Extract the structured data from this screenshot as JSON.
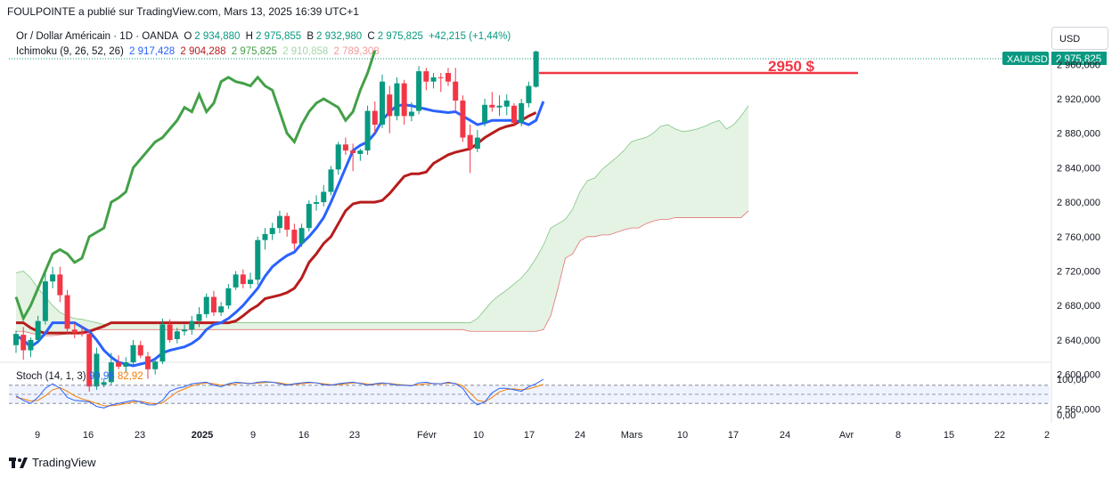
{
  "header": {
    "publisher_line": "FOULPOINTE a publié sur TradingView.com, Mars 13, 2025 16:39 UTC+1"
  },
  "legend": {
    "symbol": "Or / Dollar Américain · 1D · OANDA",
    "o_label": "O",
    "o_value": "2 934,880",
    "h_label": "H",
    "h_value": "2 975,855",
    "b_label": "B",
    "b_value": "2 932,980",
    "c_label": "C",
    "c_value": "2 975,825",
    "change": "+42,215 (+1,44%)",
    "ichimoku_label": "Ichimoku (9, 26, 52, 26)",
    "ichimoku_values": [
      "2 917,428",
      "2 904,288",
      "2 975,825",
      "2 910,858",
      "2 789,308"
    ],
    "stoch_label": "Stoch (14, 1, 3)",
    "stoch_values": [
      "99,98",
      "82,92"
    ]
  },
  "currency_button": "USD",
  "symbol_badge": "XAUUSD",
  "price_badge": "2 975,825",
  "annotation": "2950 $",
  "brand": "TradingView",
  "colors": {
    "up": "#089981",
    "down": "#f23645",
    "tenkan": "#2962ff",
    "kijun": "#b71c1c",
    "chikou": "#43a047",
    "cloud_bull": "#c8e6c9",
    "cloud_bear": "#ffcdd2",
    "stoch_k": "#2962ff",
    "stoch_d": "#f57c00"
  },
  "chart_data": {
    "type": "candlestick",
    "y_ticks": [
      "2 960,000",
      "2 920,000",
      "2 880,000",
      "2 840,000",
      "2 800,000",
      "2 760,000",
      "2 720,000",
      "2 680,000",
      "2 640,000",
      "2 600,000",
      "2 560,000"
    ],
    "ylim": [
      2535,
      2990
    ],
    "x_ticks": [
      "9",
      "16",
      "23",
      "2025",
      "9",
      "16",
      "23",
      "Févr",
      "10",
      "17",
      "24",
      "Mars",
      "10",
      "17",
      "24",
      "Avr",
      "8",
      "15",
      "22",
      "2"
    ],
    "candles": [
      {
        "o": 2634,
        "h": 2651,
        "l": 2625,
        "c": 2647
      },
      {
        "o": 2646,
        "h": 2655,
        "l": 2617,
        "c": 2628
      },
      {
        "o": 2628,
        "h": 2643,
        "l": 2620,
        "c": 2640
      },
      {
        "o": 2640,
        "h": 2668,
        "l": 2636,
        "c": 2662
      },
      {
        "o": 2662,
        "h": 2718,
        "l": 2658,
        "c": 2708
      },
      {
        "o": 2708,
        "h": 2725,
        "l": 2700,
        "c": 2716
      },
      {
        "o": 2716,
        "h": 2725,
        "l": 2684,
        "c": 2692
      },
      {
        "o": 2692,
        "h": 2698,
        "l": 2648,
        "c": 2653
      },
      {
        "o": 2652,
        "h": 2660,
        "l": 2642,
        "c": 2648
      },
      {
        "o": 2648,
        "h": 2656,
        "l": 2644,
        "c": 2647
      },
      {
        "o": 2647,
        "h": 2652,
        "l": 2580,
        "c": 2586
      },
      {
        "o": 2586,
        "h": 2631,
        "l": 2582,
        "c": 2624
      },
      {
        "o": 2588,
        "h": 2595,
        "l": 2585,
        "c": 2591
      },
      {
        "o": 2591,
        "h": 2625,
        "l": 2588,
        "c": 2614
      },
      {
        "o": 2614,
        "h": 2622,
        "l": 2606,
        "c": 2609
      },
      {
        "o": 2609,
        "h": 2620,
        "l": 2602,
        "c": 2614
      },
      {
        "o": 2614,
        "h": 2640,
        "l": 2610,
        "c": 2634
      },
      {
        "o": 2634,
        "h": 2639,
        "l": 2619,
        "c": 2622
      },
      {
        "o": 2621,
        "h": 2626,
        "l": 2595,
        "c": 2606
      },
      {
        "o": 2606,
        "h": 2618,
        "l": 2600,
        "c": 2615
      },
      {
        "o": 2615,
        "h": 2665,
        "l": 2612,
        "c": 2658
      },
      {
        "o": 2658,
        "h": 2664,
        "l": 2637,
        "c": 2640
      },
      {
        "o": 2641,
        "h": 2654,
        "l": 2636,
        "c": 2650
      },
      {
        "o": 2650,
        "h": 2658,
        "l": 2645,
        "c": 2652
      },
      {
        "o": 2652,
        "h": 2668,
        "l": 2646,
        "c": 2662
      },
      {
        "o": 2662,
        "h": 2678,
        "l": 2655,
        "c": 2670
      },
      {
        "o": 2670,
        "h": 2694,
        "l": 2666,
        "c": 2690
      },
      {
        "o": 2690,
        "h": 2697,
        "l": 2668,
        "c": 2672
      },
      {
        "o": 2672,
        "h": 2684,
        "l": 2668,
        "c": 2679
      },
      {
        "o": 2680,
        "h": 2705,
        "l": 2676,
        "c": 2700
      },
      {
        "o": 2701,
        "h": 2720,
        "l": 2698,
        "c": 2716
      },
      {
        "o": 2716,
        "h": 2722,
        "l": 2700,
        "c": 2705
      },
      {
        "o": 2705,
        "h": 2718,
        "l": 2700,
        "c": 2710
      },
      {
        "o": 2710,
        "h": 2760,
        "l": 2704,
        "c": 2756
      },
      {
        "o": 2756,
        "h": 2770,
        "l": 2745,
        "c": 2763
      },
      {
        "o": 2763,
        "h": 2776,
        "l": 2756,
        "c": 2770
      },
      {
        "o": 2770,
        "h": 2790,
        "l": 2764,
        "c": 2784
      },
      {
        "o": 2784,
        "h": 2788,
        "l": 2760,
        "c": 2768
      },
      {
        "o": 2768,
        "h": 2775,
        "l": 2745,
        "c": 2752
      },
      {
        "o": 2752,
        "h": 2775,
        "l": 2748,
        "c": 2770
      },
      {
        "o": 2770,
        "h": 2802,
        "l": 2766,
        "c": 2798
      },
      {
        "o": 2798,
        "h": 2808,
        "l": 2790,
        "c": 2800
      },
      {
        "o": 2800,
        "h": 2820,
        "l": 2795,
        "c": 2812
      },
      {
        "o": 2812,
        "h": 2842,
        "l": 2808,
        "c": 2838
      },
      {
        "o": 2838,
        "h": 2870,
        "l": 2832,
        "c": 2867
      },
      {
        "o": 2867,
        "h": 2875,
        "l": 2855,
        "c": 2860
      },
      {
        "o": 2860,
        "h": 2868,
        "l": 2836,
        "c": 2857
      },
      {
        "o": 2856,
        "h": 2862,
        "l": 2848,
        "c": 2860
      },
      {
        "o": 2860,
        "h": 2912,
        "l": 2855,
        "c": 2906
      },
      {
        "o": 2906,
        "h": 2917,
        "l": 2880,
        "c": 2890
      },
      {
        "o": 2890,
        "h": 2948,
        "l": 2886,
        "c": 2940
      },
      {
        "o": 2925,
        "h": 2935,
        "l": 2880,
        "c": 2900
      },
      {
        "o": 2900,
        "h": 2945,
        "l": 2895,
        "c": 2938
      },
      {
        "o": 2938,
        "h": 2942,
        "l": 2890,
        "c": 2900
      },
      {
        "o": 2900,
        "h": 2916,
        "l": 2894,
        "c": 2905
      },
      {
        "o": 2906,
        "h": 2958,
        "l": 2902,
        "c": 2952
      },
      {
        "o": 2952,
        "h": 2956,
        "l": 2930,
        "c": 2940
      },
      {
        "o": 2940,
        "h": 2950,
        "l": 2932,
        "c": 2945
      },
      {
        "o": 2945,
        "h": 2950,
        "l": 2928,
        "c": 2944
      },
      {
        "o": 2950,
        "h": 2956,
        "l": 2935,
        "c": 2940
      },
      {
        "o": 2940,
        "h": 2956,
        "l": 2905,
        "c": 2918
      },
      {
        "o": 2918,
        "h": 2924,
        "l": 2870,
        "c": 2875
      },
      {
        "o": 2878,
        "h": 2890,
        "l": 2834,
        "c": 2862
      },
      {
        "o": 2862,
        "h": 2884,
        "l": 2858,
        "c": 2875
      },
      {
        "o": 2893,
        "h": 2920,
        "l": 2888,
        "c": 2913
      },
      {
        "o": 2913,
        "h": 2928,
        "l": 2905,
        "c": 2910
      },
      {
        "o": 2910,
        "h": 2924,
        "l": 2900,
        "c": 2912
      },
      {
        "o": 2911,
        "h": 2925,
        "l": 2901,
        "c": 2918
      },
      {
        "o": 2912,
        "h": 2915,
        "l": 2888,
        "c": 2892
      },
      {
        "o": 2892,
        "h": 2920,
        "l": 2888,
        "c": 2915
      },
      {
        "o": 2915,
        "h": 2940,
        "l": 2910,
        "c": 2935
      },
      {
        "o": 2934,
        "h": 2976,
        "l": 2933,
        "c": 2975
      }
    ],
    "resistance": 2950,
    "stoch_ylim": [
      0,
      100
    ],
    "stoch_ticks": [
      "100,00",
      "0,00"
    ]
  }
}
